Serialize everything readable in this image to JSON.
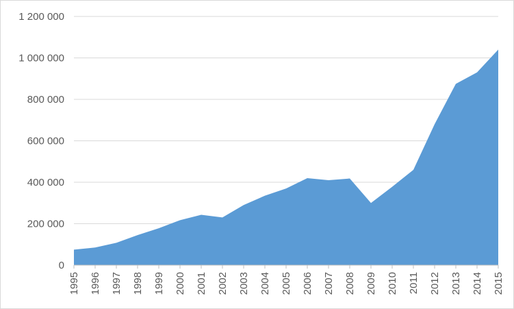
{
  "chart_data": {
    "type": "area",
    "title": "",
    "xlabel": "",
    "ylabel": "",
    "ylim": [
      0,
      1200000
    ],
    "yticks": [
      0,
      200000,
      400000,
      600000,
      800000,
      1000000,
      1200000
    ],
    "ytick_labels": [
      "0",
      "200 000",
      "400 000",
      "600 000",
      "800 000",
      "1 000 000",
      "1 200 000"
    ],
    "grid": "horizontal",
    "legend": "none",
    "color": "#5b9bd5",
    "x": [
      "1995",
      "1996",
      "1997",
      "1998",
      "1999",
      "2000",
      "2001",
      "2002",
      "2003",
      "2004",
      "2005",
      "2006",
      "2007",
      "2008",
      "2009",
      "2010",
      "2011",
      "2012",
      "2013",
      "2014",
      "2015"
    ],
    "series": [
      {
        "values": [
          75000,
          85000,
          108000,
          145000,
          178000,
          217000,
          243000,
          230000,
          290000,
          335000,
          370000,
          420000,
          410000,
          418000,
          300000,
          378000,
          460000,
          680000,
          875000,
          930000,
          1040000
        ]
      }
    ]
  }
}
